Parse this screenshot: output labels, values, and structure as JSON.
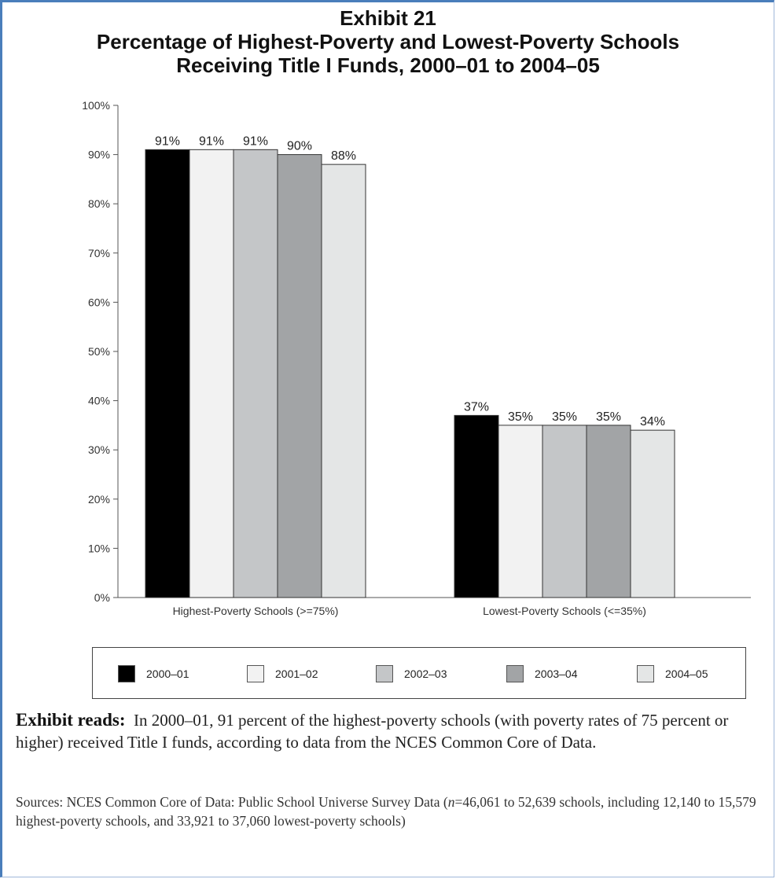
{
  "exhibit": {
    "number": "Exhibit 21",
    "title_line1": "Percentage of Highest-Poverty and Lowest-Poverty Schools",
    "title_line2": "Receiving Title I Funds, 2000–01 to 2004–05"
  },
  "chart_data": {
    "type": "bar",
    "categories": [
      "Highest-Poverty Schools (>=75%)",
      "Lowest-Poverty Schools (<=35%)"
    ],
    "series": [
      {
        "name": "2000–01",
        "values": [
          91,
          37
        ],
        "color": "#000000"
      },
      {
        "name": "2001–02",
        "values": [
          91,
          35
        ],
        "color": "#f2f2f2"
      },
      {
        "name": "2002–03",
        "values": [
          91,
          35
        ],
        "color": "#c4c6c8"
      },
      {
        "name": "2003–04",
        "values": [
          90,
          35
        ],
        "color": "#a2a4a6"
      },
      {
        "name": "2004–05",
        "values": [
          88,
          34
        ],
        "color": "#e4e6e6"
      }
    ],
    "data_labels": [
      [
        "91%",
        "37%"
      ],
      [
        "91%",
        "35%"
      ],
      [
        "91%",
        "35%"
      ],
      [
        "90%",
        "35%"
      ],
      [
        "88%",
        "34%"
      ]
    ],
    "y_ticks": [
      "0%",
      "10%",
      "20%",
      "30%",
      "40%",
      "50%",
      "60%",
      "70%",
      "80%",
      "90%",
      "100%"
    ],
    "ylim": [
      0,
      100
    ],
    "grid": false,
    "legend_position": "bottom"
  },
  "exhibit_reads": {
    "label": "Exhibit reads:",
    "text": "In 2000–01, 91 percent of the highest-poverty schools (with poverty rates of 75 percent or higher) received Title I funds, according to data from the NCES Common Core of Data."
  },
  "sources": {
    "before_n": "Sources: NCES Common Core of Data: Public School Universe Survey Data (",
    "n_symbol": "n",
    "after_n": "=46,061 to 52,639 schools, including 12,140 to 15,579 highest-poverty schools, and 33,921 to 37,060 lowest-poverty schools)"
  }
}
